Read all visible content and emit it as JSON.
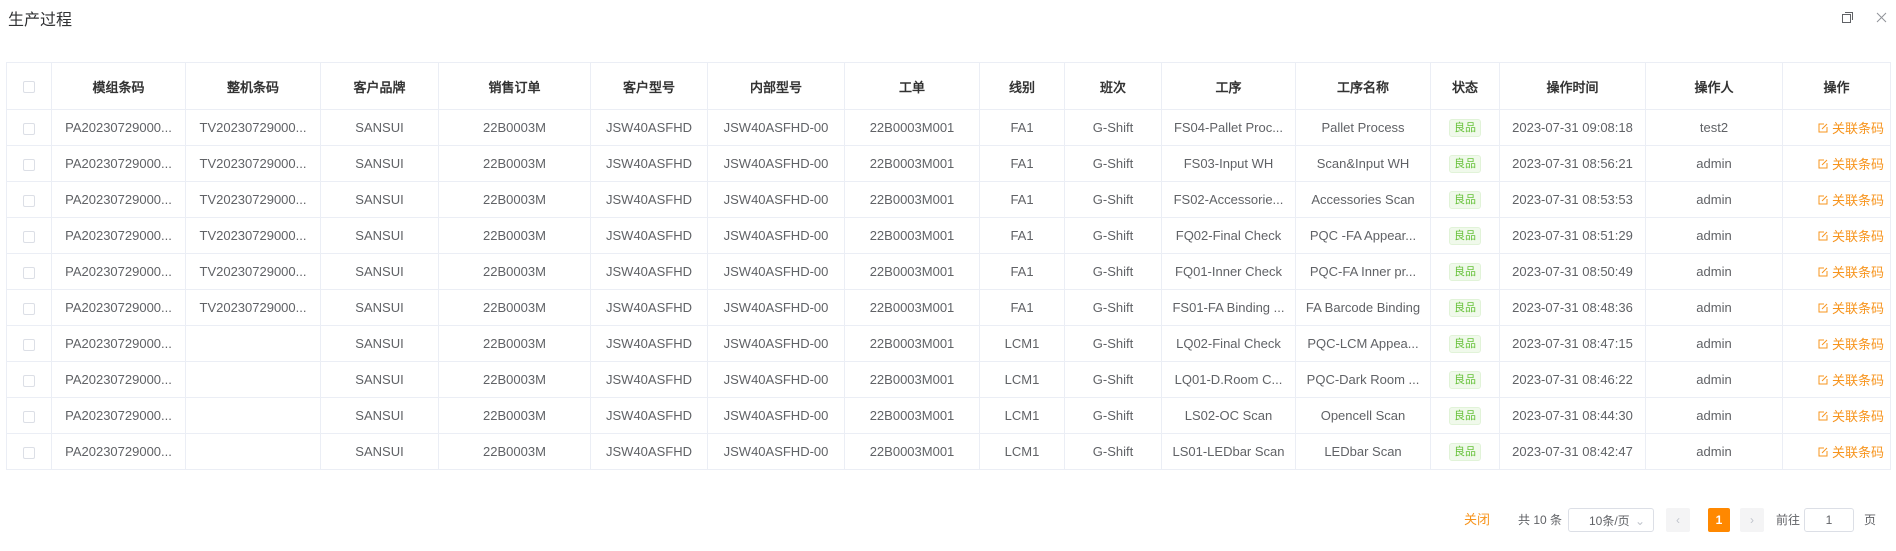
{
  "window": {
    "title": "生产过程",
    "icons": [
      "maximize-icon",
      "close-icon"
    ]
  },
  "table": {
    "columns": [
      "",
      "模组条码",
      "整机条码",
      "客户品牌",
      "销售订单",
      "客户型号",
      "内部型号",
      "工单",
      "线别",
      "班次",
      "工序",
      "工序名称",
      "状态",
      "操作时间",
      "操作人",
      "操作"
    ],
    "action_label": "关联条码",
    "rows": [
      [
        "PA20230729000...",
        "TV20230729000...",
        "SANSUI",
        "22B0003M",
        "JSW40ASFHD",
        "JSW40ASFHD-00",
        "22B0003M001",
        "FA1",
        "G-Shift",
        "FS04-Pallet Proc...",
        "Pallet Process",
        "良品",
        "2023-07-31 09:08:18",
        "test2"
      ],
      [
        "PA20230729000...",
        "TV20230729000...",
        "SANSUI",
        "22B0003M",
        "JSW40ASFHD",
        "JSW40ASFHD-00",
        "22B0003M001",
        "FA1",
        "G-Shift",
        "FS03-Input WH",
        "Scan&Input WH",
        "良品",
        "2023-07-31 08:56:21",
        "admin"
      ],
      [
        "PA20230729000...",
        "TV20230729000...",
        "SANSUI",
        "22B0003M",
        "JSW40ASFHD",
        "JSW40ASFHD-00",
        "22B0003M001",
        "FA1",
        "G-Shift",
        "FS02-Accessorie...",
        "Accessories Scan",
        "良品",
        "2023-07-31 08:53:53",
        "admin"
      ],
      [
        "PA20230729000...",
        "TV20230729000...",
        "SANSUI",
        "22B0003M",
        "JSW40ASFHD",
        "JSW40ASFHD-00",
        "22B0003M001",
        "FA1",
        "G-Shift",
        "FQ02-Final Check",
        "PQC -FA Appear...",
        "良品",
        "2023-07-31 08:51:29",
        "admin"
      ],
      [
        "PA20230729000...",
        "TV20230729000...",
        "SANSUI",
        "22B0003M",
        "JSW40ASFHD",
        "JSW40ASFHD-00",
        "22B0003M001",
        "FA1",
        "G-Shift",
        "FQ01-Inner Check",
        "PQC-FA Inner pr...",
        "良品",
        "2023-07-31 08:50:49",
        "admin"
      ],
      [
        "PA20230729000...",
        "TV20230729000...",
        "SANSUI",
        "22B0003M",
        "JSW40ASFHD",
        "JSW40ASFHD-00",
        "22B0003M001",
        "FA1",
        "G-Shift",
        "FS01-FA Binding ...",
        "FA Barcode Binding",
        "良品",
        "2023-07-31 08:48:36",
        "admin"
      ],
      [
        "PA20230729000...",
        "",
        "SANSUI",
        "22B0003M",
        "JSW40ASFHD",
        "JSW40ASFHD-00",
        "22B0003M001",
        "LCM1",
        "G-Shift",
        "LQ02-Final Check",
        "PQC-LCM Appea...",
        "良品",
        "2023-07-31 08:47:15",
        "admin"
      ],
      [
        "PA20230729000...",
        "",
        "SANSUI",
        "22B0003M",
        "JSW40ASFHD",
        "JSW40ASFHD-00",
        "22B0003M001",
        "LCM1",
        "G-Shift",
        "LQ01-D.Room C...",
        "PQC-Dark Room ...",
        "良品",
        "2023-07-31 08:46:22",
        "admin"
      ],
      [
        "PA20230729000...",
        "",
        "SANSUI",
        "22B0003M",
        "JSW40ASFHD",
        "JSW40ASFHD-00",
        "22B0003M001",
        "LCM1",
        "G-Shift",
        "LS02-OC Scan",
        "Opencell Scan",
        "良品",
        "2023-07-31 08:44:30",
        "admin"
      ],
      [
        "PA20230729000...",
        "",
        "SANSUI",
        "22B0003M",
        "JSW40ASFHD",
        "JSW40ASFHD-00",
        "22B0003M001",
        "LCM1",
        "G-Shift",
        "LS01-LEDbar Scan",
        "LEDbar Scan",
        "良品",
        "2023-07-31 08:42:47",
        "admin"
      ]
    ]
  },
  "pagination": {
    "close_label": "关闭",
    "total": "共 10 条",
    "page_size": "10条/页",
    "current_page": "1",
    "goto_prefix": "前往",
    "goto_value": "1",
    "goto_suffix": "页"
  },
  "colors": {
    "accent": "#ff8800",
    "link": "#f7941d",
    "status_good": "#67c23a"
  }
}
